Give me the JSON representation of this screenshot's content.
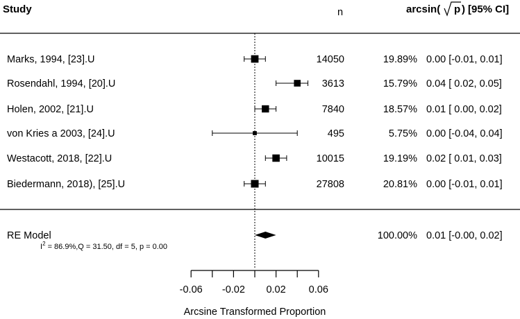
{
  "chart_data": {
    "type": "forest",
    "headers": {
      "study": "Study",
      "n": "n",
      "effect": "arcsin(√p) [95% CI]",
      "effect_fn": "arcsin(",
      "effect_arg": "p",
      "effect_close": ")",
      "effect_ci": "[95% CI]"
    },
    "studies": [
      {
        "label": "Marks, 1994, [23].U",
        "n": "14050",
        "weight": "19.89%",
        "est": 0.0,
        "lo": -0.01,
        "hi": 0.01,
        "text": "0.00 [-0.01, 0.01]"
      },
      {
        "label": "Rosendahl, 1994, [20].U",
        "n": "3613",
        "weight": "15.79%",
        "est": 0.04,
        "lo": 0.02,
        "hi": 0.05,
        "text": "0.04 [ 0.02, 0.05]"
      },
      {
        "label": "Holen, 2002, [21].U",
        "n": "7840",
        "weight": "18.57%",
        "est": 0.01,
        "lo": 0.0,
        "hi": 0.02,
        "text": "0.01 [ 0.00, 0.02]"
      },
      {
        "label": "von Kries a 2003, [24].U",
        "n": "495",
        "weight": "5.75%",
        "est": 0.0,
        "lo": -0.04,
        "hi": 0.04,
        "text": "0.00 [-0.04, 0.04]"
      },
      {
        "label": "Westacott, 2018, [22].U",
        "n": "10015",
        "weight": "19.19%",
        "est": 0.02,
        "lo": 0.01,
        "hi": 0.03,
        "text": "0.02 [ 0.01, 0.03]"
      },
      {
        "label": "Biedermann, 2018), [25].U",
        "n": "27808",
        "weight": "20.81%",
        "est": 0.0,
        "lo": -0.01,
        "hi": 0.01,
        "text": "0.00 [-0.01, 0.01]"
      }
    ],
    "summary": {
      "label": "RE Model",
      "weight": "100.00%",
      "est": 0.01,
      "lo": -0.0,
      "hi": 0.02,
      "text": "0.01 [-0.00, 0.02]",
      "het_i": "I",
      "het_sup": "2",
      "het_rest": " = 86.9%,Q = 31.50, df = 5, p = 0.00"
    },
    "xaxis": {
      "label": "Arcsine Transformed Proportion",
      "ticks": [
        -0.06,
        -0.04,
        -0.02,
        0.0,
        0.02,
        0.04,
        0.06
      ],
      "tick_labels": [
        "-0.06",
        "-0.02",
        "0.02",
        "0.06"
      ],
      "labeled_ticks": [
        -0.06,
        -0.02,
        0.02,
        0.06
      ],
      "range": [
        -0.06,
        0.06
      ]
    },
    "reference_line": 0.0
  }
}
